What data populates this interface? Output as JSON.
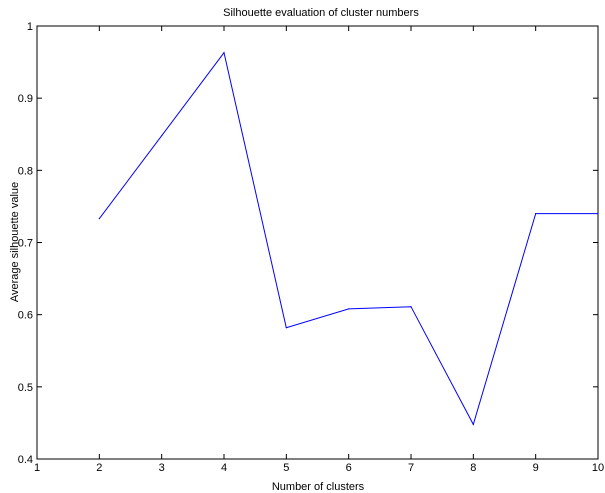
{
  "chart_data": {
    "type": "line",
    "title": "Silhouette evaluation of cluster numbers",
    "xlabel": "Number of clusters",
    "ylabel": "Average silhouette value",
    "xlim": [
      1,
      10
    ],
    "ylim": [
      0.4,
      1
    ],
    "xticks": [
      "1",
      "2",
      "3",
      "4",
      "5",
      "6",
      "7",
      "8",
      "9",
      "10"
    ],
    "yticks": [
      "0.4",
      "0.5",
      "0.6",
      "0.7",
      "0.8",
      "0.9",
      "1"
    ],
    "grid": false,
    "legend": "none",
    "series": [
      {
        "color": "#0000ff",
        "x": [
          2,
          3,
          4,
          5,
          6,
          7,
          8,
          9,
          10
        ],
        "y": [
          0.733,
          0.848,
          0.963,
          0.582,
          0.608,
          0.611,
          0.448,
          0.74,
          0.74
        ]
      }
    ]
  }
}
